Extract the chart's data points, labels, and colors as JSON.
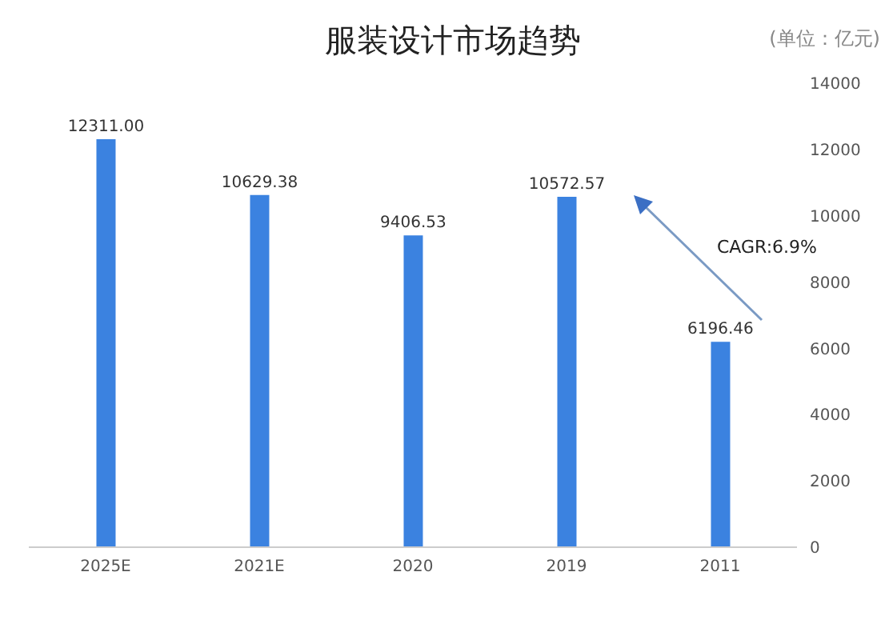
{
  "chart_data": {
    "type": "bar",
    "title": "服装设计市场趋势",
    "subtitle": "(单位：亿元)",
    "categories": [
      "2025E",
      "2021E",
      "2020",
      "2019",
      "2011"
    ],
    "values": [
      12311.0,
      10629.38,
      9406.53,
      10572.57,
      6196.46
    ],
    "value_labels": [
      "12311.00",
      "10629.38",
      "9406.53",
      "10572.57",
      "6196.46"
    ],
    "color": "#3b82e0",
    "ylim": [
      0,
      14000
    ],
    "yticks": [
      0,
      2000,
      4000,
      6000,
      8000,
      10000,
      12000,
      14000
    ],
    "grid": false,
    "annotations": [
      "CAGR:6.9%"
    ]
  }
}
